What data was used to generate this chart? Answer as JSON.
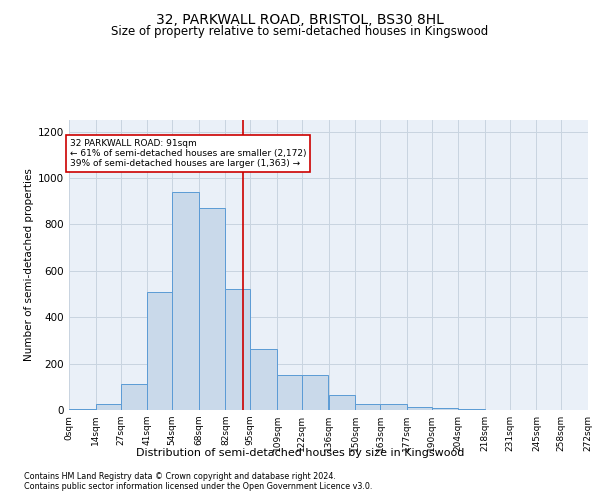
{
  "title": "32, PARKWALL ROAD, BRISTOL, BS30 8HL",
  "subtitle": "Size of property relative to semi-detached houses in Kingswood",
  "xlabel": "Distribution of semi-detached houses by size in Kingswood",
  "ylabel": "Number of semi-detached properties",
  "annotation_title": "32 PARKWALL ROAD: 91sqm",
  "annotation_line1": "← 61% of semi-detached houses are smaller (2,172)",
  "annotation_line2": "39% of semi-detached houses are larger (1,363) →",
  "footnote1": "Contains HM Land Registry data © Crown copyright and database right 2024.",
  "footnote2": "Contains public sector information licensed under the Open Government Licence v3.0.",
  "bin_edges": [
    0,
    14,
    27,
    41,
    54,
    68,
    82,
    95,
    109,
    122,
    136,
    150,
    163,
    177,
    190,
    204,
    218,
    231,
    245,
    258,
    272
  ],
  "bin_labels": [
    "0sqm",
    "14sqm",
    "27sqm",
    "41sqm",
    "54sqm",
    "68sqm",
    "82sqm",
    "95sqm",
    "109sqm",
    "122sqm",
    "136sqm",
    "150sqm",
    "163sqm",
    "177sqm",
    "190sqm",
    "204sqm",
    "218sqm",
    "231sqm",
    "245sqm",
    "258sqm",
    "272sqm"
  ],
  "counts": [
    5,
    25,
    110,
    510,
    940,
    870,
    520,
    265,
    150,
    150,
    65,
    25,
    25,
    15,
    10,
    5,
    2,
    1,
    0,
    0
  ],
  "bar_color": "#c9d9ea",
  "bar_edge_color": "#5b9bd5",
  "vline_color": "#cc0000",
  "vline_x": 91,
  "annotation_box_color": "#ffffff",
  "annotation_box_edge": "#cc0000",
  "ylim": [
    0,
    1250
  ],
  "yticks": [
    0,
    200,
    400,
    600,
    800,
    1000,
    1200
  ],
  "grid_color": "#c8d4e0",
  "background_color": "#eaf0f8",
  "title_fontsize": 10,
  "subtitle_fontsize": 8.5
}
